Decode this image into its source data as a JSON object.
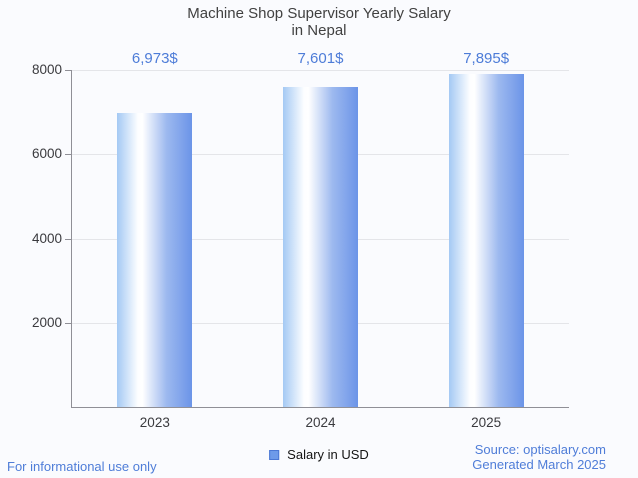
{
  "title": {
    "lines": [
      "Machine Shop Supervisor Yearly Salary",
      "in Nepal"
    ]
  },
  "legend": {
    "label": "Salary in USD",
    "swatch_color": "#6d9ae9"
  },
  "footer": {
    "disclaimer": "For informational use only",
    "source": "Source: optisalary.com",
    "generated": "Generated March 2025"
  },
  "colors": {
    "background": "#fafbfe",
    "bar_gradient_left": "#a4c9f4",
    "bar_gradient_middle": "#ffffff",
    "bar_gradient_right": "#6b94e8",
    "value_label_blue": "#4d7cd8",
    "footer_blue": "#4f7dd8",
    "axis_gray": "#8f8f96",
    "gridline_gray": "#e4e5e9",
    "title_gray": "#414141"
  },
  "chart_data": {
    "type": "bar",
    "title": "Machine Shop Supervisor Yearly Salary in Nepal",
    "categories": [
      "2023",
      "2024",
      "2025"
    ],
    "values": [
      6973,
      7601,
      7895
    ],
    "value_labels": [
      "6,973$",
      "7,601$",
      "7,895$"
    ],
    "series_name": "Salary in USD",
    "xlabel": "",
    "ylabel": "",
    "ylim": [
      0,
      8000
    ],
    "yticks": [
      2000,
      4000,
      6000,
      8000
    ],
    "grid": true,
    "legend_position": "bottom"
  }
}
